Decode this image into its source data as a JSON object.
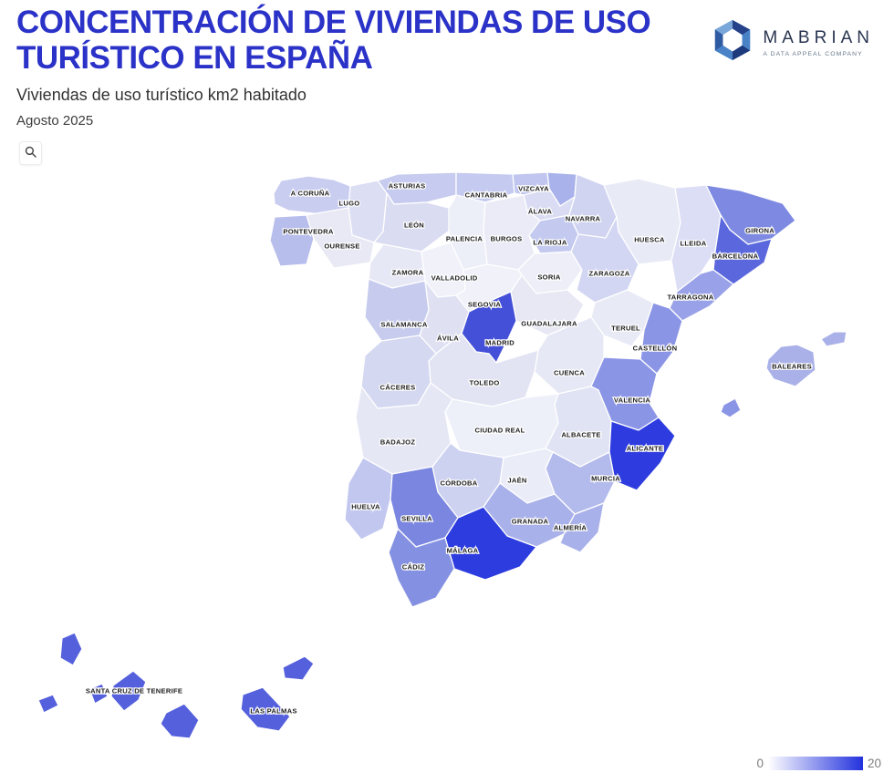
{
  "header": {
    "title": "Concentración de viviendas de uso turístico en España",
    "subtitle": "Viviendas de uso turístico km2 habitado",
    "date": "Agosto 2025"
  },
  "logo": {
    "brand": "MABRIAN",
    "tagline": "A DATA APPEAL COMPANY"
  },
  "legend": {
    "min": "0",
    "max": "20",
    "color_min": "#ffffff",
    "color_max": "#2231dd"
  },
  "chart_data": {
    "type": "choropleth",
    "title": "Concentración de viviendas de uso turístico en España",
    "metric": "Viviendas de uso turístico km2 habitado",
    "period": "Agosto 2025",
    "scale": {
      "min": 0,
      "max": 20,
      "color_min": "#ffffff",
      "color_max": "#2231dd"
    },
    "regions": [
      {
        "id": "a_coruna",
        "name": "A CORUÑA",
        "color": "#c9cdf0"
      },
      {
        "id": "lugo",
        "name": "LUGO",
        "color": "#dcdef3"
      },
      {
        "id": "asturias",
        "name": "ASTURIAS",
        "color": "#c6cbef"
      },
      {
        "id": "cantabria",
        "name": "CANTABRIA",
        "color": "#c5caf0"
      },
      {
        "id": "vizcaya",
        "name": "VIZCAYA",
        "color": "#c0c6ef"
      },
      {
        "id": "gipuzkoa",
        "name": "",
        "color": "#a9b2ea"
      },
      {
        "id": "alava",
        "name": "ÁLAVA",
        "color": "#dadcf3"
      },
      {
        "id": "navarra",
        "name": "NAVARRA",
        "color": "#d0d4f1"
      },
      {
        "id": "pontevedra",
        "name": "PONTEVEDRA",
        "color": "#b8beec"
      },
      {
        "id": "ourense",
        "name": "OURENSE",
        "color": "#e8e9f5"
      },
      {
        "id": "leon",
        "name": "LEÓN",
        "color": "#dadcf2"
      },
      {
        "id": "palencia",
        "name": "PALENCIA",
        "color": "#eceef8"
      },
      {
        "id": "burgos",
        "name": "BURGOS",
        "color": "#eaebf6"
      },
      {
        "id": "la_rioja",
        "name": "LA RIOJA",
        "color": "#c4c9f0"
      },
      {
        "id": "huesca",
        "name": "HUESCA",
        "color": "#e8eaf6"
      },
      {
        "id": "lleida",
        "name": "LLEIDA",
        "color": "#dcdef5"
      },
      {
        "id": "girona",
        "name": "GIRONA",
        "color": "#7e8ae2"
      },
      {
        "id": "barcelona",
        "name": "BARCELONA",
        "color": "#5b68dd"
      },
      {
        "id": "zamora",
        "name": "ZAMORA",
        "color": "#e7e8f5"
      },
      {
        "id": "valladolid",
        "name": "VALLADOLID",
        "color": "#f0f1f9"
      },
      {
        "id": "soria",
        "name": "SORIA",
        "color": "#edeef7"
      },
      {
        "id": "zaragoza",
        "name": "ZARAGOZA",
        "color": "#d2d6f2"
      },
      {
        "id": "tarragona",
        "name": "TARRAGONA",
        "color": "#99a2e8"
      },
      {
        "id": "segovia",
        "name": "SEGOVIA",
        "color": "#f0f1f9"
      },
      {
        "id": "salamanca",
        "name": "SALAMANCA",
        "color": "#c7cbee"
      },
      {
        "id": "avila",
        "name": "ÁVILA",
        "color": "#dfe1f3"
      },
      {
        "id": "guadalajara",
        "name": "GUADALAJARA",
        "color": "#e7e8f4"
      },
      {
        "id": "madrid",
        "name": "MADRID",
        "color": "#4450d8"
      },
      {
        "id": "teruel",
        "name": "TERUEL",
        "color": "#e8eaf6"
      },
      {
        "id": "castellon",
        "name": "CASTELLÓN",
        "color": "#8b95e5"
      },
      {
        "id": "cuenca",
        "name": "CUENCA",
        "color": "#e6e8f5"
      },
      {
        "id": "toledo",
        "name": "TOLEDO",
        "color": "#e3e4f3"
      },
      {
        "id": "caceres",
        "name": "CÁCERES",
        "color": "#d4d8f0"
      },
      {
        "id": "valencia",
        "name": "VALENCIA",
        "color": "#8b95e5"
      },
      {
        "id": "badajoz",
        "name": "BADAJOZ",
        "color": "#e5e7f5"
      },
      {
        "id": "ciudad_real",
        "name": "CIUDAD REAL",
        "color": "#eef0f9"
      },
      {
        "id": "albacete",
        "name": "ALBACETE",
        "color": "#e0e3f4"
      },
      {
        "id": "alicante",
        "name": "ALICANTE",
        "color": "#2e3cdf"
      },
      {
        "id": "murcia",
        "name": "MURCIA",
        "color": "#b3baec"
      },
      {
        "id": "cordoba",
        "name": "CÓRDOBA",
        "color": "#ced2f1"
      },
      {
        "id": "jaen",
        "name": "JAÉN",
        "color": "#eaecf8"
      },
      {
        "id": "huelva",
        "name": "HUELVA",
        "color": "#c2c7ef"
      },
      {
        "id": "sevilla",
        "name": "SEVILLA",
        "color": "#7a86e0"
      },
      {
        "id": "granada",
        "name": "GRANADA",
        "color": "#a9b1ea"
      },
      {
        "id": "almeria",
        "name": "ALMERÍA",
        "color": "#a9b1ea"
      },
      {
        "id": "malaga",
        "name": "MÁLAGA",
        "color": "#2d3cdf"
      },
      {
        "id": "cadiz",
        "name": "CÁDIZ",
        "color": "#8490e2"
      },
      {
        "id": "baleares",
        "name": "BALEARES",
        "color": "#aab1e9"
      },
      {
        "id": "ibiza",
        "name": "",
        "color": "#8b95e5"
      },
      {
        "id": "canarias_scz",
        "name": "SANTA CRUZ DE TENERIFE",
        "color": "#5560dd"
      },
      {
        "id": "canarias_lp",
        "name": "LAS PALMAS",
        "color": "#5560dd"
      }
    ]
  }
}
